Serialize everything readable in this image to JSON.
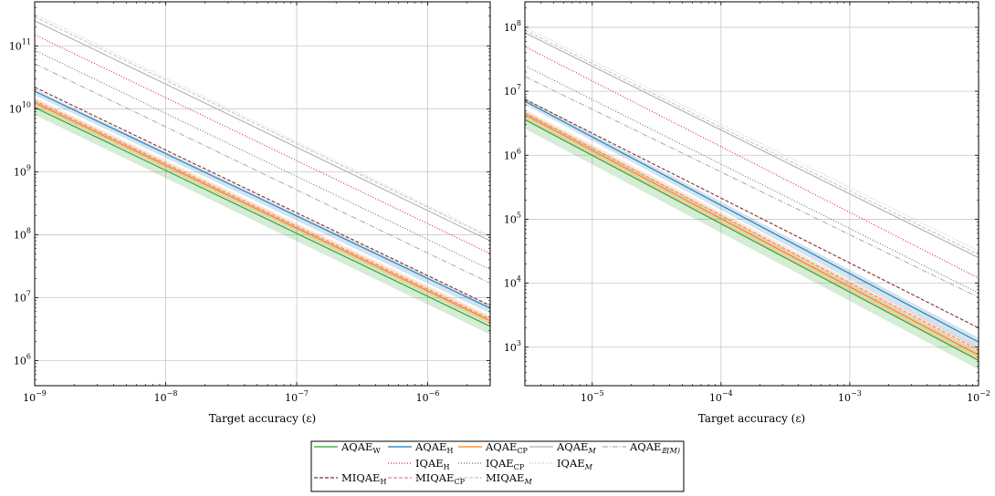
{
  "chart_data": [
    {
      "type": "line",
      "xscale": "log",
      "yscale": "log",
      "xlabel": "Target accuracy (ε)",
      "ylabel": "",
      "xlim": [
        1e-09,
        3e-06
      ],
      "ylim": [
        400000.0,
        500000000000.0
      ],
      "xticks": [
        {
          "base": "10",
          "exp": "−9",
          "value": 1e-09
        },
        {
          "base": "10",
          "exp": "−8",
          "value": 1e-08
        },
        {
          "base": "10",
          "exp": "−7",
          "value": 1e-07
        },
        {
          "base": "10",
          "exp": "−6",
          "value": 1e-06
        }
      ],
      "yticks": [
        {
          "base": "10",
          "exp": "6",
          "value": 1000000.0
        },
        {
          "base": "10",
          "exp": "7",
          "value": 10000000.0
        },
        {
          "base": "10",
          "exp": "8",
          "value": 100000000.0
        },
        {
          "base": "10",
          "exp": "9",
          "value": 1000000000.0
        },
        {
          "base": "10",
          "exp": "10",
          "value": 10000000000.0
        },
        {
          "base": "10",
          "exp": "11",
          "value": 100000000000.0
        }
      ],
      "grid": true,
      "series": [
        {
          "key": "aqae_w",
          "points": [
            [
              1e-09,
              10500000000.0
            ],
            [
              3e-06,
              3500000.0
            ]
          ],
          "band": [
            [
              1e-09,
              8000000000.0,
              13500000000.0
            ],
            [
              3e-06,
              2600000.0,
              4500000.0
            ]
          ]
        },
        {
          "key": "aqae_h",
          "points": [
            [
              1e-09,
              19000000000.0
            ],
            [
              3e-06,
              6800000.0
            ]
          ],
          "band": [
            [
              1e-09,
              16500000000.0,
              20500000000.0
            ],
            [
              3e-06,
              5600000.0,
              7400000.0
            ]
          ]
        },
        {
          "key": "aqae_cp",
          "points": [
            [
              1e-09,
              12500000000.0
            ],
            [
              3e-06,
              4300000.0
            ]
          ],
          "band": [
            [
              1e-09,
              11000000000.0,
              15000000000.0
            ],
            [
              3e-06,
              3800000.0,
              5200000.0
            ]
          ]
        },
        {
          "key": "aqae_m",
          "points": [
            [
              1e-09,
              250000000000.0
            ],
            [
              3e-06,
              80000000.0
            ]
          ]
        },
        {
          "key": "aqae_em",
          "points": [
            [
              1e-09,
              52000000000.0
            ],
            [
              3e-06,
              17000000.0
            ]
          ]
        },
        {
          "key": "iqae_h",
          "points": [
            [
              1e-09,
              150000000000.0
            ],
            [
              3e-06,
              50000000.0
            ]
          ]
        },
        {
          "key": "iqae_cp",
          "points": [
            [
              1e-09,
              85000000000.0
            ],
            [
              3e-06,
              28000000.0
            ]
          ]
        },
        {
          "key": "iqae_m",
          "points": [
            [
              1e-09,
              320000000000.0
            ],
            [
              3e-06,
              95000000.0
            ]
          ]
        },
        {
          "key": "miqae_h",
          "points": [
            [
              1e-09,
              22000000000.0
            ],
            [
              3e-06,
              7500000.0
            ]
          ]
        },
        {
          "key": "miqae_cp",
          "points": [
            [
              1e-09,
              13500000000.0
            ],
            [
              3e-06,
              4600000.0
            ]
          ]
        },
        {
          "key": "miqae_m",
          "points": [
            [
              1e-09,
              290000000000.0
            ],
            [
              3e-06,
              90000000.0
            ]
          ]
        }
      ]
    },
    {
      "type": "line",
      "xscale": "log",
      "yscale": "log",
      "xlabel": "Target accuracy (ε)",
      "ylabel": "",
      "xlim": [
        3e-06,
        0.01
      ],
      "ylim": [
        250.0,
        250000000.0
      ],
      "xticks": [
        {
          "base": "10",
          "exp": "−5",
          "value": 1e-05
        },
        {
          "base": "10",
          "exp": "−4",
          "value": 0.0001
        },
        {
          "base": "10",
          "exp": "−3",
          "value": 0.001
        },
        {
          "base": "10",
          "exp": "−2",
          "value": 0.01
        }
      ],
      "yticks": [
        {
          "base": "10",
          "exp": "3",
          "value": 1000.0
        },
        {
          "base": "10",
          "exp": "4",
          "value": 10000.0
        },
        {
          "base": "10",
          "exp": "5",
          "value": 100000.0
        },
        {
          "base": "10",
          "exp": "6",
          "value": 1000000.0
        },
        {
          "base": "10",
          "exp": "7",
          "value": 10000000.0
        },
        {
          "base": "10",
          "exp": "8",
          "value": 100000000.0
        }
      ],
      "grid": true,
      "series": [
        {
          "key": "aqae_w",
          "points": [
            [
              3e-06,
              3600000.0
            ],
            [
              0.01,
              620.0
            ]
          ],
          "band": [
            [
              3e-06,
              2600000.0,
              4800000.0
            ],
            [
              0.01,
              450.0,
              850.0
            ]
          ]
        },
        {
          "key": "aqae_h",
          "points": [
            [
              3e-06,
              7000000.0
            ],
            [
              0.01,
              1200.0
            ]
          ],
          "band": [
            [
              3e-06,
              6200000.0,
              7800000.0
            ],
            [
              0.01,
              950.0,
              1400.0
            ]
          ]
        },
        {
          "key": "aqae_cp",
          "points": [
            [
              3e-06,
              4300000.0
            ],
            [
              0.01,
              750.0
            ]
          ],
          "band": [
            [
              3e-06,
              3600000.0,
              5200000.0
            ],
            [
              0.01,
              600.0,
              1000.0
            ]
          ]
        },
        {
          "key": "aqae_m",
          "points": [
            [
              3e-06,
              82000000.0
            ],
            [
              0.01,
              25000.0
            ]
          ]
        },
        {
          "key": "aqae_em",
          "points": [
            [
              3e-06,
              17000000.0
            ],
            [
              0.01,
              6000.0
            ]
          ]
        },
        {
          "key": "iqae_h",
          "points": [
            [
              3e-06,
              50000000.0
            ],
            [
              0.01,
              12000.0
            ]
          ]
        },
        {
          "key": "iqae_cp",
          "points": [
            [
              3e-06,
              25000000.0
            ],
            [
              0.01,
              7000.0
            ]
          ]
        },
        {
          "key": "iqae_m",
          "points": [
            [
              3e-06,
              100000000.0
            ],
            [
              0.01,
              32000.0
            ]
          ]
        },
        {
          "key": "miqae_h",
          "points": [
            [
              3e-06,
              7500000.0
            ],
            [
              0.01,
              2000.0
            ]
          ]
        },
        {
          "key": "miqae_cp",
          "points": [
            [
              3e-06,
              4600000.0
            ],
            [
              0.01,
              900.0
            ]
          ]
        },
        {
          "key": "miqae_m",
          "points": [
            [
              3e-06,
              90000000.0
            ],
            [
              0.01,
              28000.0
            ]
          ]
        }
      ]
    }
  ],
  "legend": {
    "placement": "bottom-center",
    "entries": [
      {
        "key": "aqae_w",
        "base": "AQAE",
        "sub": "W",
        "italic_sub": false
      },
      {
        "key": "aqae_h",
        "base": "AQAE",
        "sub": "H",
        "italic_sub": false
      },
      {
        "key": "aqae_cp",
        "base": "AQAE",
        "sub": "CP",
        "italic_sub": false
      },
      {
        "key": "aqae_m",
        "base": "AQAE",
        "sub": "M",
        "italic_sub": true
      },
      {
        "key": "aqae_em",
        "base": "AQAE",
        "sub": "𝔼(M)",
        "italic_sub": true
      },
      {
        "key": "iqae_h",
        "base": "IQAE",
        "sub": "H",
        "italic_sub": false
      },
      {
        "key": "iqae_cp",
        "base": "IQAE",
        "sub": "CP",
        "italic_sub": false
      },
      {
        "key": "iqae_m",
        "base": "IQAE",
        "sub": "M",
        "italic_sub": true
      },
      {
        "key": "miqae_h",
        "base": "MIQAE",
        "sub": "H",
        "italic_sub": false
      },
      {
        "key": "miqae_cp",
        "base": "MIQAE",
        "sub": "CP",
        "italic_sub": false
      },
      {
        "key": "miqae_m",
        "base": "MIQAE",
        "sub": "M",
        "italic_sub": true
      }
    ]
  },
  "styles": {
    "aqae_w": {
      "color": "#2ca02c",
      "dash": "none",
      "band": "#2ca02c"
    },
    "aqae_h": {
      "color": "#1f77b4",
      "dash": "none",
      "band": "#1f77b4"
    },
    "aqae_cp": {
      "color": "#ff7f0e",
      "dash": "none",
      "band": "#ff7f0e"
    },
    "aqae_m": {
      "color": "#b0b0b0",
      "dash": "none"
    },
    "aqae_em": {
      "color": "#b0b0b0",
      "dash": "6 2 1 2"
    },
    "iqae_h": {
      "color": "#d62728",
      "dash": "1 2"
    },
    "iqae_cp": {
      "color": "#6a6a9a",
      "dash": "1 2"
    },
    "iqae_m": {
      "color": "#c8c8c8",
      "dash": "1 2"
    },
    "miqae_h": {
      "color": "#8c2d2d",
      "dash": "4 2"
    },
    "miqae_cp": {
      "color": "#f08080",
      "dash": "4 2"
    },
    "miqae_m": {
      "color": "#c8c8c8",
      "dash": "4 2"
    }
  }
}
